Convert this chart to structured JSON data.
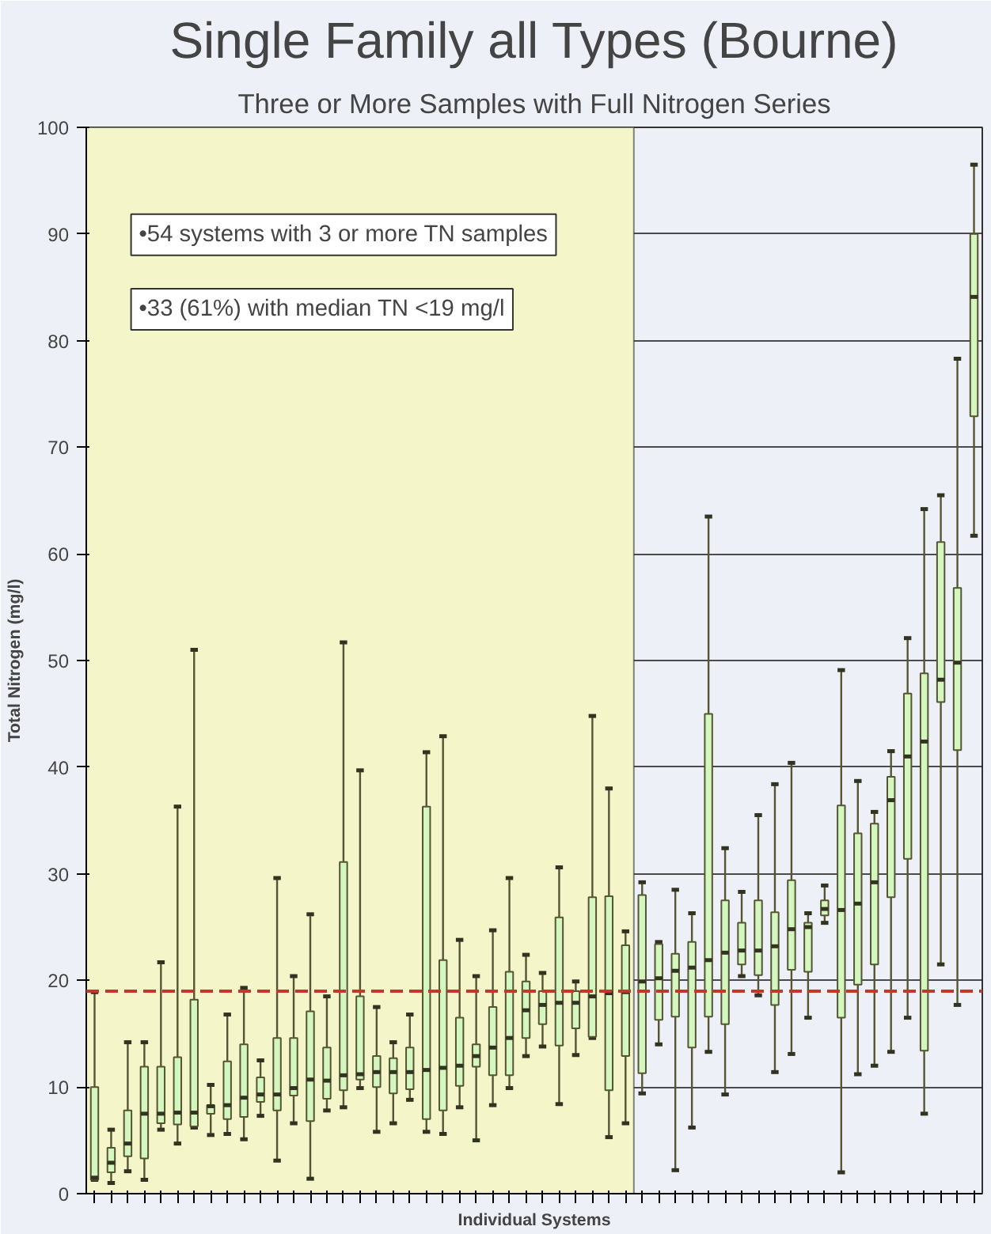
{
  "chart_data": {
    "type": "box",
    "title": "Single Family all Types (Bourne)",
    "subtitle": "Three or More Samples with Full Nitrogen Series",
    "xlabel": "Individual Systems",
    "ylabel": "Total Nitrogen (mg/l)",
    "color": "#d4f7c0",
    "categories": [
      null,
      null,
      null,
      null,
      null,
      null,
      null,
      null,
      null,
      null,
      null,
      null,
      null,
      null,
      null,
      null,
      null,
      null,
      null,
      null,
      null,
      null,
      null,
      null,
      null,
      null,
      null,
      null,
      null,
      null,
      null,
      null,
      null,
      null,
      null,
      null,
      null,
      null,
      null,
      null,
      null,
      null,
      null,
      null,
      null,
      null,
      null,
      null,
      null,
      null,
      null,
      null,
      null,
      null
    ],
    "boxes": [
      {
        "low": 1.3,
        "q1": 1.3,
        "median": 1.5,
        "q3": 10,
        "high": 18.9
      },
      {
        "low": 1,
        "q1": 2,
        "median": 2.9,
        "q3": 4.3,
        "high": 6
      },
      {
        "low": 2.1,
        "q1": 3.5,
        "median": 4.7,
        "q3": 7.8,
        "high": 14.2
      },
      {
        "low": 1.3,
        "q1": 3.3,
        "median": 7.5,
        "q3": 11.9,
        "high": 14.2
      },
      {
        "low": 6,
        "q1": 6.6,
        "median": 7.5,
        "q3": 11.9,
        "high": 21.7
      },
      {
        "low": 4.7,
        "q1": 6.5,
        "median": 7.6,
        "q3": 12.8,
        "high": 36.3
      },
      {
        "low": 6.2,
        "q1": 6.3,
        "median": 7.6,
        "q3": 18.2,
        "high": 51
      },
      {
        "low": 5.5,
        "q1": 7.5,
        "median": 8.2,
        "q3": 8.3,
        "high": 10.2
      },
      {
        "low": 5.6,
        "q1": 7,
        "median": 8.3,
        "q3": 12.4,
        "high": 16.8
      },
      {
        "low": 5.1,
        "q1": 7.2,
        "median": 9,
        "q3": 14,
        "high": 19.3
      },
      {
        "low": 7.3,
        "q1": 8.6,
        "median": 9.3,
        "q3": 10.9,
        "high": 12.5
      },
      {
        "low": 3.1,
        "q1": 7.8,
        "median": 9.3,
        "q3": 14.6,
        "high": 29.6
      },
      {
        "low": 6.6,
        "q1": 9.2,
        "median": 9.9,
        "q3": 14.6,
        "high": 20.4
      },
      {
        "low": 1.4,
        "q1": 6.8,
        "median": 10.7,
        "q3": 17.1,
        "high": 26.2
      },
      {
        "low": 7.8,
        "q1": 8.9,
        "median": 10.6,
        "q3": 13.7,
        "high": 18.5
      },
      {
        "low": 8.1,
        "q1": 9.7,
        "median": 11.1,
        "q3": 31.1,
        "high": 51.7
      },
      {
        "low": 9.9,
        "q1": 10.7,
        "median": 11.2,
        "q3": 18.5,
        "high": 39.7
      },
      {
        "low": 5.8,
        "q1": 10,
        "median": 11.4,
        "q3": 12.9,
        "high": 17.5
      },
      {
        "low": 6.6,
        "q1": 9.4,
        "median": 11.4,
        "q3": 12.7,
        "high": 14.2
      },
      {
        "low": 8.8,
        "q1": 9.8,
        "median": 11.4,
        "q3": 13.7,
        "high": 16.8
      },
      {
        "low": 5.8,
        "q1": 7,
        "median": 11.6,
        "q3": 36.3,
        "high": 41.4
      },
      {
        "low": 5.6,
        "q1": 7.8,
        "median": 11.8,
        "q3": 21.9,
        "high": 42.9
      },
      {
        "low": 8.1,
        "q1": 10.1,
        "median": 12,
        "q3": 16.5,
        "high": 23.8
      },
      {
        "low": 5,
        "q1": 11.9,
        "median": 12.9,
        "q3": 14,
        "high": 20.4
      },
      {
        "low": 8.3,
        "q1": 11.1,
        "median": 13.7,
        "q3": 17.5,
        "high": 24.7
      },
      {
        "low": 9.9,
        "q1": 11.1,
        "median": 14.6,
        "q3": 20.8,
        "high": 29.6
      },
      {
        "low": 12.9,
        "q1": 14.6,
        "median": 17.2,
        "q3": 19.9,
        "high": 22.4
      },
      {
        "low": 13.8,
        "q1": 15.9,
        "median": 17.7,
        "q3": 19,
        "high": 20.7
      },
      {
        "low": 8.4,
        "q1": 13.9,
        "median": 17.9,
        "q3": 25.9,
        "high": 30.6
      },
      {
        "low": 13,
        "q1": 15.5,
        "median": 17.9,
        "q3": 19,
        "high": 19.9
      },
      {
        "low": 14.6,
        "q1": 14.7,
        "median": 18.5,
        "q3": 27.8,
        "high": 44.8
      },
      {
        "low": 5.3,
        "q1": 9.7,
        "median": 18.8,
        "q3": 27.9,
        "high": 38
      },
      {
        "low": 6.6,
        "q1": 12.9,
        "median": 18.9,
        "q3": 23.3,
        "high": 24.6
      },
      {
        "low": 9.4,
        "q1": 11.3,
        "median": 19.9,
        "q3": 28,
        "high": 29.2
      },
      {
        "low": 14,
        "q1": 16.3,
        "median": 20.2,
        "q3": 23.4,
        "high": 23.6
      },
      {
        "low": 2.2,
        "q1": 16.6,
        "median": 20.9,
        "q3": 22.5,
        "high": 28.5
      },
      {
        "low": 6.2,
        "q1": 13.7,
        "median": 21.2,
        "q3": 23.6,
        "high": 26.3
      },
      {
        "low": 13.3,
        "q1": 16.6,
        "median": 21.9,
        "q3": 45,
        "high": 63.5
      },
      {
        "low": 9.3,
        "q1": 15.9,
        "median": 22.6,
        "q3": 27.5,
        "high": 32.4
      },
      {
        "low": 20.4,
        "q1": 21.5,
        "median": 22.8,
        "q3": 25.4,
        "high": 28.3
      },
      {
        "low": 18.6,
        "q1": 20.5,
        "median": 22.8,
        "q3": 27.5,
        "high": 35.5
      },
      {
        "low": 11.4,
        "q1": 17.7,
        "median": 23.2,
        "q3": 26.4,
        "high": 38.4
      },
      {
        "low": 13.1,
        "q1": 21,
        "median": 24.8,
        "q3": 29.4,
        "high": 40.4
      },
      {
        "low": 16.5,
        "q1": 20.8,
        "median": 25,
        "q3": 25.4,
        "high": 26.3
      },
      {
        "low": 25.4,
        "q1": 26.1,
        "median": 26.7,
        "q3": 27.5,
        "high": 28.9
      },
      {
        "low": 2,
        "q1": 16.5,
        "median": 26.6,
        "q3": 36.4,
        "high": 49.1
      },
      {
        "low": 11.2,
        "q1": 19.6,
        "median": 27.2,
        "q3": 33.8,
        "high": 38.7
      },
      {
        "low": 12,
        "q1": 21.5,
        "median": 29.2,
        "q3": 34.7,
        "high": 35.8
      },
      {
        "low": 13.3,
        "q1": 27.8,
        "median": 36.9,
        "q3": 39.1,
        "high": 41.5
      },
      {
        "low": 16.5,
        "q1": 31.4,
        "median": 41,
        "q3": 46.9,
        "high": 52.1
      },
      {
        "low": 7.5,
        "q1": 13.4,
        "median": 42.4,
        "q3": 48.8,
        "high": 64.2
      },
      {
        "low": 21.5,
        "q1": 46.1,
        "median": 48.2,
        "q3": 61.1,
        "high": 65.5
      },
      {
        "low": 17.7,
        "q1": 41.6,
        "median": 49.8,
        "q3": 56.8,
        "high": 78.3
      },
      {
        "low": 61.7,
        "q1": 72.9,
        "median": 84.1,
        "q3": 90,
        "high": 96.5
      }
    ],
    "ylim": [
      0,
      100
    ],
    "yticks": [
      0,
      10,
      20,
      30,
      40,
      50,
      60,
      70,
      80,
      90,
      100
    ],
    "grid": "y",
    "tick_labels": "y",
    "ref_lines": [
      {
        "axis": "y",
        "value": 19,
        "color": "#c0392b",
        "line_style": "dashed"
      }
    ],
    "annotations": [
      "•54 systems with 3 or more TN samples",
      "•33 (61%) with median TN <19 mg/l"
    ]
  }
}
